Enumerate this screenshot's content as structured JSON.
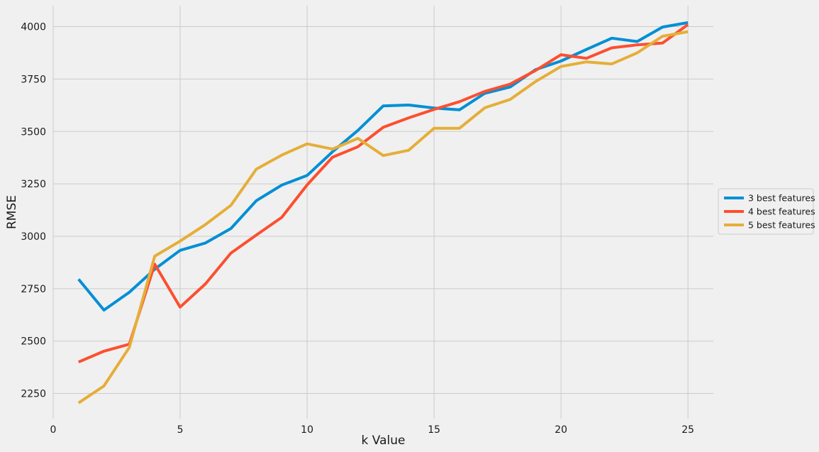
{
  "chart_data": {
    "type": "line",
    "xlabel": "k Value",
    "ylabel": "RMSE",
    "xlim": [
      0,
      26
    ],
    "ylim": [
      2130,
      4100
    ],
    "xticks": [
      0,
      5,
      10,
      15,
      20,
      25
    ],
    "yticks": [
      2250,
      2500,
      2750,
      3000,
      3250,
      3500,
      3750,
      4000
    ],
    "grid": true,
    "legend_position": "right",
    "x": [
      1,
      2,
      3,
      4,
      5,
      6,
      7,
      8,
      9,
      10,
      11,
      12,
      13,
      14,
      15,
      16,
      17,
      18,
      19,
      20,
      21,
      22,
      23,
      24,
      25
    ],
    "series": [
      {
        "name": "3 best features",
        "color": "#008fd5",
        "values": [
          2795,
          2648,
          2733,
          2843,
          2933,
          2968,
          3037,
          3170,
          3244,
          3290,
          3403,
          3505,
          3622,
          3626,
          3612,
          3603,
          3682,
          3712,
          3795,
          3836,
          3891,
          3945,
          3929,
          3998,
          4019
        ]
      },
      {
        "name": "4 best features",
        "color": "#fc4f30",
        "values": [
          2400,
          2452,
          2485,
          2867,
          2662,
          2773,
          2920,
          3006,
          3090,
          3245,
          3377,
          3427,
          3520,
          3565,
          3605,
          3642,
          3691,
          3726,
          3791,
          3866,
          3849,
          3899,
          3913,
          3922,
          4010
        ]
      },
      {
        "name": "5 best features",
        "color": "#e5ae38",
        "values": [
          2205,
          2286,
          2470,
          2905,
          2977,
          3056,
          3148,
          3320,
          3387,
          3441,
          3416,
          3467,
          3385,
          3410,
          3515,
          3515,
          3613,
          3653,
          3738,
          3810,
          3832,
          3822,
          3875,
          3954,
          3976
        ]
      }
    ]
  }
}
